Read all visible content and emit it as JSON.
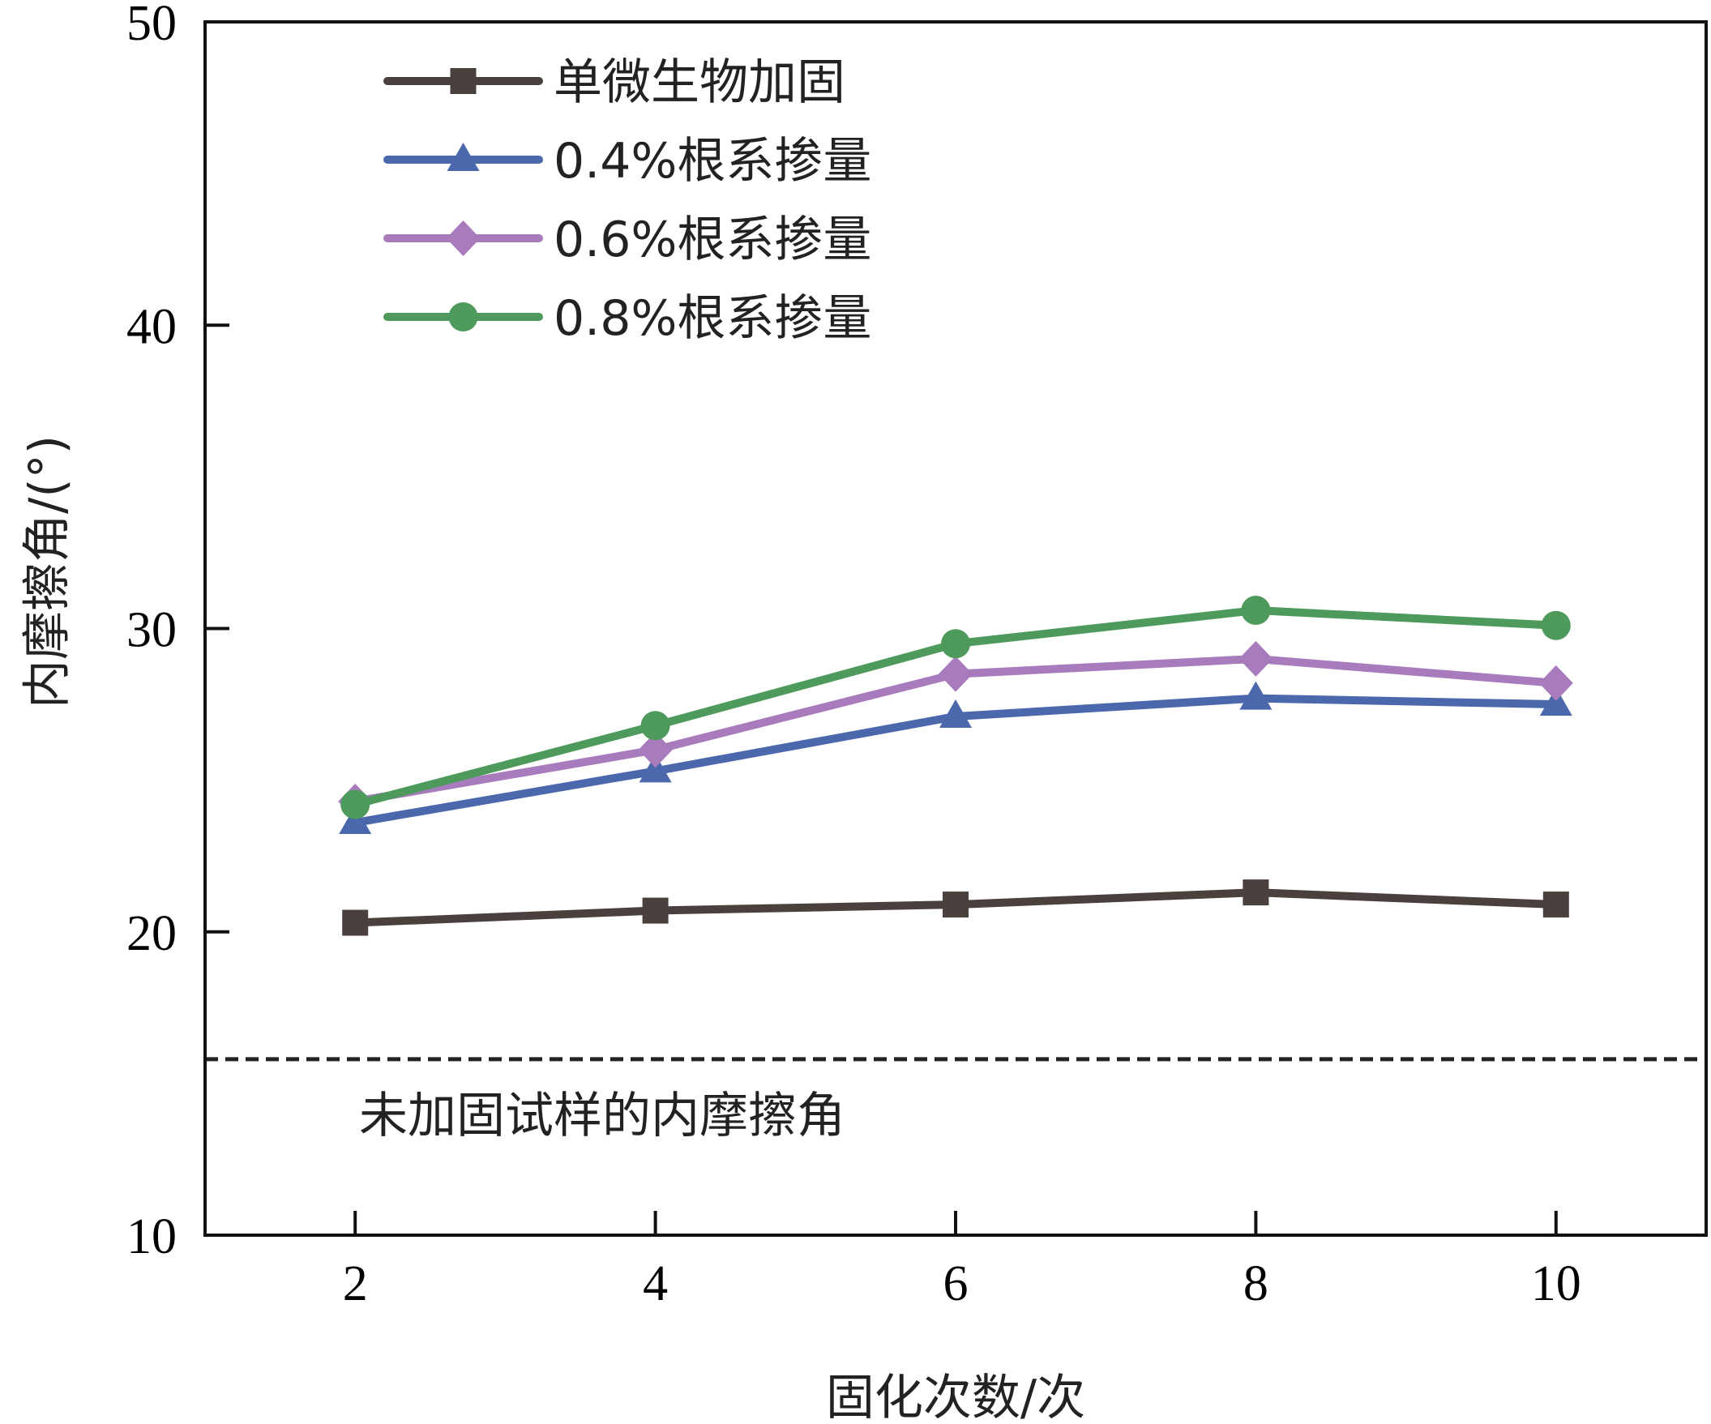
{
  "chart_data": {
    "type": "line",
    "title": "",
    "xlabel": "固化次数/次",
    "ylabel": "内摩擦角/(°)",
    "x": [
      2,
      4,
      6,
      8,
      10
    ],
    "xlim": [
      1,
      11
    ],
    "ylim": [
      10,
      50
    ],
    "xticks": [
      2,
      4,
      6,
      8,
      10
    ],
    "yticks": [
      10,
      20,
      30,
      40,
      50
    ],
    "grid": false,
    "legend_position": "top-left",
    "series": [
      {
        "name": "单微生物加固",
        "values": [
          20.3,
          20.7,
          20.9,
          21.3,
          20.9
        ],
        "color": "#4a413f",
        "marker": "square"
      },
      {
        "name": "0.4%根系掺量",
        "values": [
          23.6,
          25.3,
          27.1,
          27.7,
          27.5
        ],
        "color": "#4b68ad",
        "marker": "triangle"
      },
      {
        "name": "0.6%根系掺量",
        "values": [
          24.3,
          26.0,
          28.5,
          29.0,
          28.2
        ],
        "color": "#a87bbd",
        "marker": "diamond"
      },
      {
        "name": "0.8%根系掺量",
        "values": [
          24.2,
          26.8,
          29.5,
          30.6,
          30.1
        ],
        "color": "#4e9a5c",
        "marker": "circle"
      }
    ],
    "reference_line": {
      "y": 15.8,
      "style": "dashed",
      "color": "#222222",
      "label": "未加固试样的内摩擦角"
    }
  }
}
